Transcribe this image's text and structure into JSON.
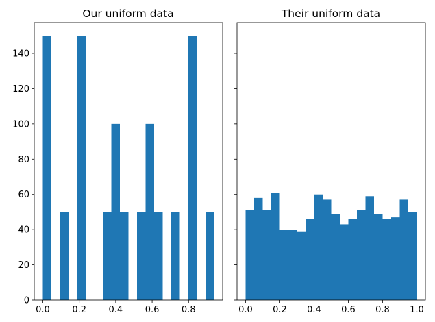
{
  "chart_data": [
    {
      "type": "bar",
      "title": "Our uniform data",
      "xlim": [
        -0.047,
        0.987
      ],
      "ylim": [
        0,
        157.5
      ],
      "xticks": [
        0.0,
        0.2,
        0.4,
        0.6,
        0.8
      ],
      "xtick_labels": [
        "0.0",
        "0.2",
        "0.4",
        "0.6",
        "0.8"
      ],
      "yticks": [
        0,
        20,
        40,
        60,
        80,
        100,
        120,
        140
      ],
      "ytick_labels": [
        "0",
        "20",
        "40",
        "60",
        "80",
        "100",
        "120",
        "140"
      ],
      "bin_edges": [
        0.0,
        0.047,
        0.094,
        0.141,
        0.188,
        0.235,
        0.282,
        0.329,
        0.376,
        0.423,
        0.47,
        0.517,
        0.564,
        0.611,
        0.658,
        0.705,
        0.752,
        0.799,
        0.846,
        0.893,
        0.94
      ],
      "values": [
        150,
        0,
        50,
        0,
        150,
        0,
        0,
        50,
        100,
        50,
        0,
        50,
        100,
        50,
        0,
        50,
        0,
        150,
        0,
        50
      ],
      "color": "#1f77b4",
      "show_ytick_labels": true
    },
    {
      "type": "bar",
      "title": "Their uniform data",
      "xlim": [
        -0.05,
        1.05
      ],
      "ylim": [
        0,
        157.5
      ],
      "xticks": [
        0.0,
        0.2,
        0.4,
        0.6,
        0.8,
        1.0
      ],
      "xtick_labels": [
        "0.0",
        "0.2",
        "0.4",
        "0.6",
        "0.8",
        "1.0"
      ],
      "yticks": [
        0,
        20,
        40,
        60,
        80,
        100,
        120,
        140
      ],
      "ytick_labels": [],
      "bin_edges": [
        0.0,
        0.05,
        0.1,
        0.15,
        0.2,
        0.25,
        0.3,
        0.35,
        0.4,
        0.45,
        0.5,
        0.55,
        0.6,
        0.65,
        0.7,
        0.75,
        0.8,
        0.85,
        0.9,
        0.95,
        1.0
      ],
      "values": [
        51,
        58,
        51,
        61,
        40,
        40,
        39,
        46,
        60,
        57,
        49,
        43,
        46,
        51,
        59,
        49,
        46,
        47,
        57,
        50
      ],
      "color": "#1f77b4",
      "show_ytick_labels": false
    }
  ]
}
